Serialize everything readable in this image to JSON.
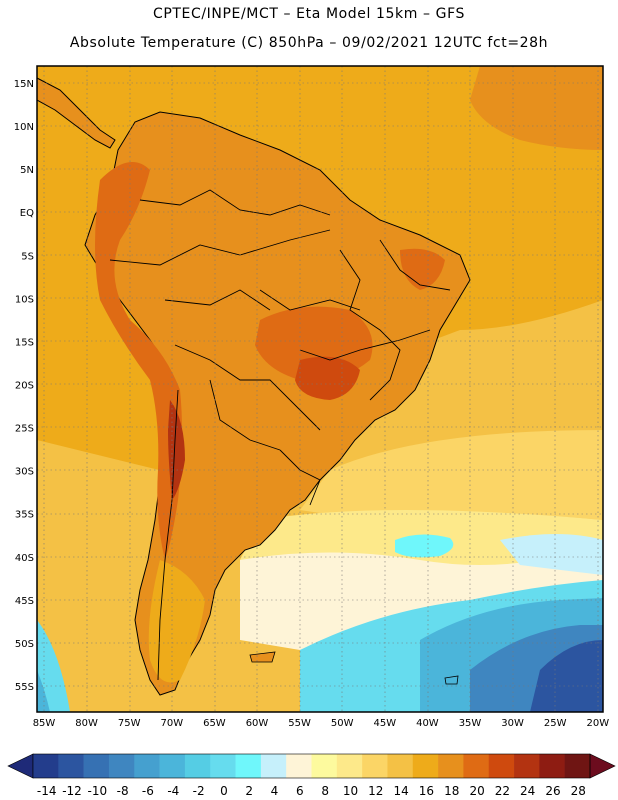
{
  "header": {
    "line1": "CPTEC/INPE/MCT –  Eta Model 15km – GFS",
    "line2": "Absolute Temperature (C) 850hPa – 09/02/2021 12UTC fct=28h"
  },
  "map": {
    "lat_labels": [
      "15N",
      "10N",
      "5N",
      "EQ",
      "5S",
      "10S",
      "15S",
      "20S",
      "25S",
      "30S",
      "35S",
      "40S",
      "45S",
      "50S",
      "55S"
    ],
    "lon_labels": [
      "85W",
      "80W",
      "75W",
      "70W",
      "65W",
      "60W",
      "55W",
      "50W",
      "45W",
      "40W",
      "35W",
      "30W",
      "25W",
      "20W"
    ],
    "region": "South America",
    "variable": "Absolute Temperature",
    "unit": "C",
    "level": "850hPa"
  },
  "colorbar": {
    "labels": [
      "-14",
      "-12",
      "-10",
      "-8",
      "-6",
      "-4",
      "-2",
      "0",
      "2",
      "4",
      "6",
      "8",
      "10",
      "12",
      "14",
      "16",
      "18",
      "20",
      "22",
      "24",
      "26",
      "28"
    ],
    "colors": [
      "#233d8c",
      "#2c55a0",
      "#3671b3",
      "#3f86c0",
      "#45a0cf",
      "#4bb5da",
      "#55cde4",
      "#66dcee",
      "#6ff7fb",
      "#c6f0fb",
      "#fef4d7",
      "#fdfa9e",
      "#fde98a",
      "#fbd566",
      "#f4c145",
      "#eeab1a",
      "#e7901d",
      "#df6b14",
      "#cf4a0e",
      "#b33311",
      "#8e1c12",
      "#6f1513"
    ],
    "under_color": "#1e2a78",
    "over_color": "#6c0c1e"
  }
}
